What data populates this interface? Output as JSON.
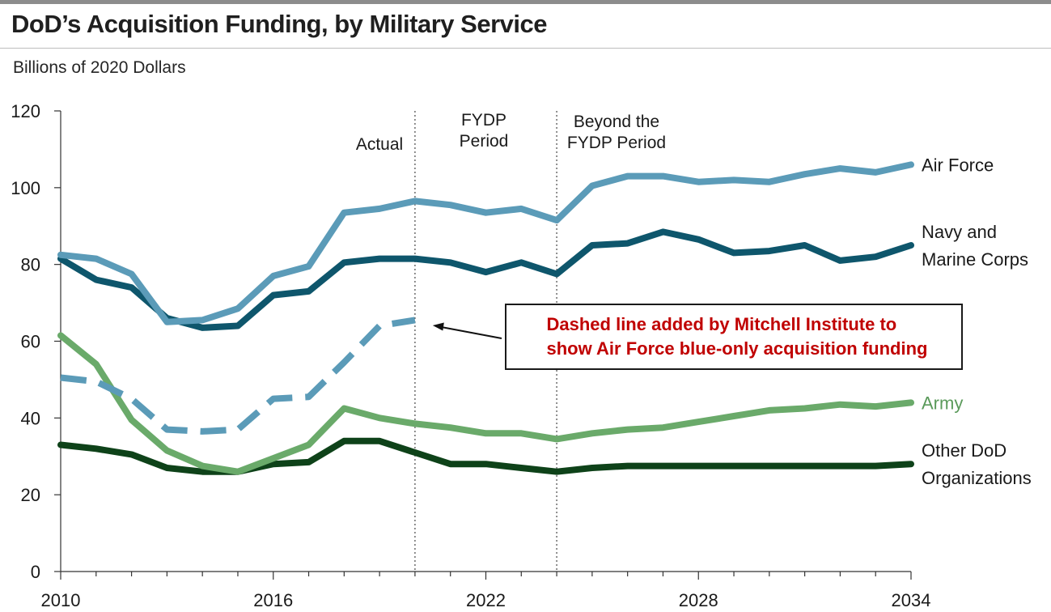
{
  "title": "DoD’s Acquisition Funding, by Military Service",
  "subtitle": "Billions of 2020 Dollars",
  "annotation": {
    "line1": "Dashed line added by Mitchell Institute to",
    "line2": "show Air Force blue-only acquisition funding"
  },
  "periods": {
    "actual": [
      "Actual"
    ],
    "fydp": [
      "FYDP",
      "Period"
    ],
    "beyond": [
      "Beyond the",
      "FYDP Period"
    ]
  },
  "colors": {
    "air_force": "#5b9bb8",
    "navy": "#0e566c",
    "army": "#6aaa6a",
    "other": "#0e4219",
    "air_force_blue": "#5b9bb8",
    "annotation_text": "#c00000"
  },
  "chart_data": {
    "type": "line",
    "title": "DoD’s Acquisition Funding, by Military Service",
    "ylabel": "Billions of 2020 Dollars",
    "xlim": [
      2010,
      2034
    ],
    "ylim": [
      0,
      120
    ],
    "x_ticks": [
      2010,
      2016,
      2022,
      2028,
      2034
    ],
    "x_tick_labels": [
      "2010",
      "2016",
      "2022",
      "2028",
      "2034"
    ],
    "y_ticks": [
      0,
      20,
      40,
      60,
      80,
      100,
      120
    ],
    "y_tick_labels": [
      "0",
      "20",
      "40",
      "60",
      "80",
      "100",
      "120"
    ],
    "grid": false,
    "dividers": [
      2020,
      2024
    ],
    "x": [
      2010,
      2011,
      2012,
      2013,
      2014,
      2015,
      2016,
      2017,
      2018,
      2019,
      2020,
      2021,
      2022,
      2023,
      2024,
      2025,
      2026,
      2027,
      2028,
      2029,
      2030,
      2031,
      2032,
      2033,
      2034
    ],
    "series": [
      {
        "key": "air_force",
        "name": "Air Force",
        "label_lines": [
          "Air Force"
        ],
        "label_y": 106,
        "label_color": "#1a1a1a",
        "values": [
          82.5,
          81.5,
          77.5,
          65,
          65.5,
          68.5,
          77,
          79.5,
          93.5,
          94.5,
          96.5,
          95.5,
          93.5,
          94.5,
          91.5,
          100.5,
          103,
          103,
          101.5,
          102,
          101.5,
          103.5,
          105,
          104,
          106
        ]
      },
      {
        "key": "navy",
        "name": "Navy and Marine Corps",
        "label_lines": [
          "Navy and",
          "Marine Corps"
        ],
        "label_y": 85,
        "label_color": "#1a1a1a",
        "values": [
          81.5,
          76,
          74,
          66,
          63.5,
          64,
          72,
          73,
          80.5,
          81.5,
          81.5,
          80.5,
          78,
          80.5,
          77.5,
          85,
          85.5,
          88.5,
          86.5,
          83,
          83.5,
          85,
          81,
          82,
          85
        ]
      },
      {
        "key": "army",
        "name": "Army",
        "label_lines": [
          "Army"
        ],
        "label_y": 44,
        "label_color": "#5a9a5a",
        "values": [
          61.5,
          54,
          39.5,
          31.5,
          27.5,
          26,
          29.5,
          33,
          42.5,
          40,
          38.5,
          37.5,
          36,
          36,
          34.5,
          36,
          37,
          37.5,
          39,
          40.5,
          42,
          42.5,
          43.5,
          43,
          44
        ]
      },
      {
        "key": "other",
        "name": "Other DoD Organizations",
        "label_lines": [
          "Other DoD",
          "Organizations"
        ],
        "label_y": 28,
        "label_color": "#1a1a1a",
        "values": [
          33,
          32,
          30.5,
          27,
          26,
          26,
          28,
          28.5,
          34,
          34,
          31,
          28,
          28,
          27,
          26,
          27,
          27.5,
          27.5,
          27.5,
          27.5,
          27.5,
          27.5,
          27.5,
          27.5,
          28
        ]
      },
      {
        "key": "air_force_blue",
        "name": "Air Force blue-only acquisition funding",
        "dashed": true,
        "x": [
          2010,
          2011,
          2012,
          2013,
          2014,
          2015,
          2016,
          2017,
          2018,
          2019,
          2020
        ],
        "values": [
          50.5,
          49.5,
          45,
          37,
          36.5,
          37,
          45,
          45.5,
          54.5,
          64,
          65.5
        ]
      }
    ]
  }
}
